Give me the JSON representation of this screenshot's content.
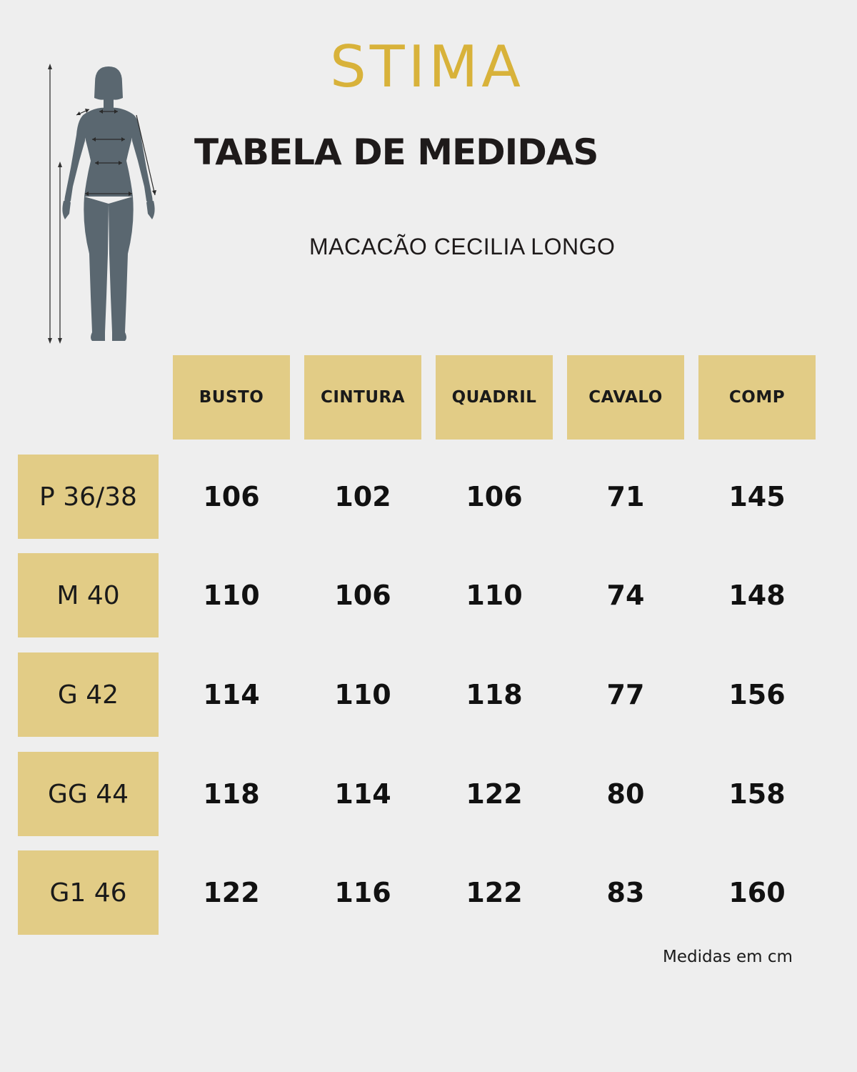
{
  "brand": {
    "name": "STIMA",
    "color": "#d8b23a"
  },
  "title": "TABELA DE MEDIDAS",
  "product": "MACACÃO CECILIA LONGO",
  "figure_icon": "body-silhouette-with-measurement-lines",
  "columns": [
    "BUSTO",
    "CINTURA",
    "QUADRIL",
    "CAVALO",
    "COMP"
  ],
  "rows": [
    {
      "size": "P 36/38",
      "values": [
        "106",
        "102",
        "106",
        "71",
        "145"
      ]
    },
    {
      "size": "M 40",
      "values": [
        "110",
        "106",
        "110",
        "74",
        "148"
      ]
    },
    {
      "size": "G 42",
      "values": [
        "114",
        "110",
        "118",
        "77",
        "156"
      ]
    },
    {
      "size": "GG 44",
      "values": [
        "118",
        "114",
        "122",
        "80",
        "158"
      ]
    },
    {
      "size": "G1 46",
      "values": [
        "122",
        "116",
        "122",
        "83",
        "160"
      ]
    }
  ],
  "note": "Medidas em cm",
  "colors": {
    "background": "#eeeeee",
    "header_fill": "#e2cc86",
    "figure": "#5a6770"
  }
}
